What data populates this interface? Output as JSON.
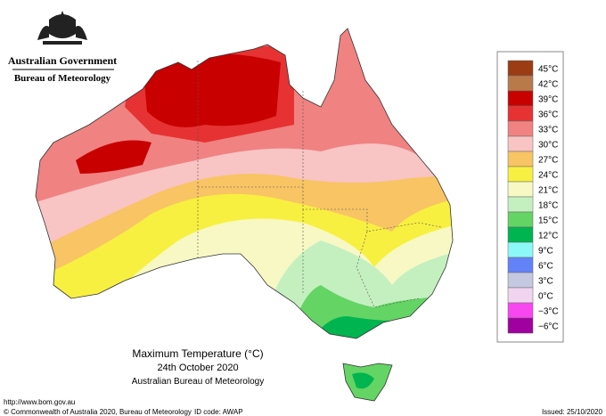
{
  "header": {
    "government": "Australian Government",
    "bureau": "Bureau of Meteorology"
  },
  "map_title": {
    "title": "Maximum Temperature (°C)",
    "date": "24th October 2020",
    "source": "Australian Bureau of Meteorology"
  },
  "legend": {
    "items": [
      {
        "label": "45°C",
        "color": "#9c3c14"
      },
      {
        "label": "42°C",
        "color": "#b97a4a"
      },
      {
        "label": "39°C",
        "color": "#c80000"
      },
      {
        "label": "36°C",
        "color": "#e63232"
      },
      {
        "label": "33°C",
        "color": "#f08282"
      },
      {
        "label": "30°C",
        "color": "#f8c4c4"
      },
      {
        "label": "27°C",
        "color": "#f8c464"
      },
      {
        "label": "24°C",
        "color": "#f8f040"
      },
      {
        "label": "21°C",
        "color": "#f8f8c4"
      },
      {
        "label": "18°C",
        "color": "#c4f0c0"
      },
      {
        "label": "15°C",
        "color": "#64d464"
      },
      {
        "label": "12°C",
        "color": "#00b450"
      },
      {
        "label": "9°C",
        "color": "#8cf8f8"
      },
      {
        "label": "6°C",
        "color": "#6482f8"
      },
      {
        "label": "3°C",
        "color": "#c4c8e0"
      },
      {
        "label": "0°C",
        "color": "#f0d4f0"
      },
      {
        "label": "−3°C",
        "color": "#f846f0"
      },
      {
        "label": "−6°C",
        "color": "#a000a0"
      }
    ]
  },
  "footer": {
    "url": "http://www.bom.gov.au",
    "copyright": "© Commonwealth of Australia 2020, Bureau of Meteorology",
    "id_code": "ID code: AWAP",
    "issued": "Issued: 25/10/2020"
  }
}
